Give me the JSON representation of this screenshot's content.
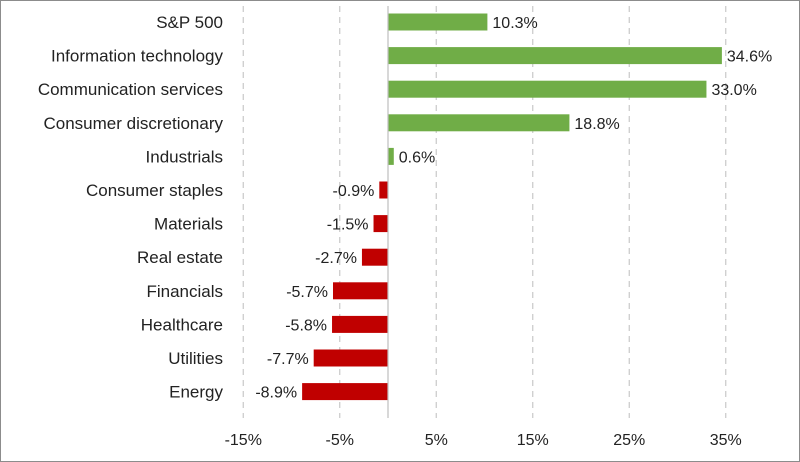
{
  "chart_data": {
    "type": "bar",
    "orientation": "horizontal",
    "categories": [
      "S&P 500",
      "Information technology",
      "Communication services",
      "Consumer discretionary",
      "Industrials",
      "Consumer staples",
      "Materials",
      "Real estate",
      "Financials",
      "Healthcare",
      "Utilities",
      "Energy"
    ],
    "values": [
      10.3,
      34.6,
      33.0,
      18.8,
      0.6,
      -0.9,
      -1.5,
      -2.7,
      -5.7,
      -5.8,
      -7.7,
      -8.9
    ],
    "value_labels": [
      "10.3%",
      "34.6%",
      "33.0%",
      "18.8%",
      "0.6%",
      "-0.9%",
      "-1.5%",
      "-2.7%",
      "-5.7%",
      "-5.8%",
      "-7.7%",
      "-8.9%"
    ],
    "x_ticks": [
      -15,
      -5,
      5,
      15,
      25,
      35
    ],
    "x_tick_labels": [
      "-15%",
      "-5%",
      "5%",
      "15%",
      "25%",
      "35%"
    ],
    "xlim": [
      -20,
      40
    ],
    "grid": "vertical dashed",
    "title": "",
    "xlabel": "",
    "ylabel": "",
    "colors": {
      "positive": "#70ad47",
      "negative": "#c00000",
      "grid": "#c8c8c8",
      "axis": "#bfbfbf"
    }
  }
}
